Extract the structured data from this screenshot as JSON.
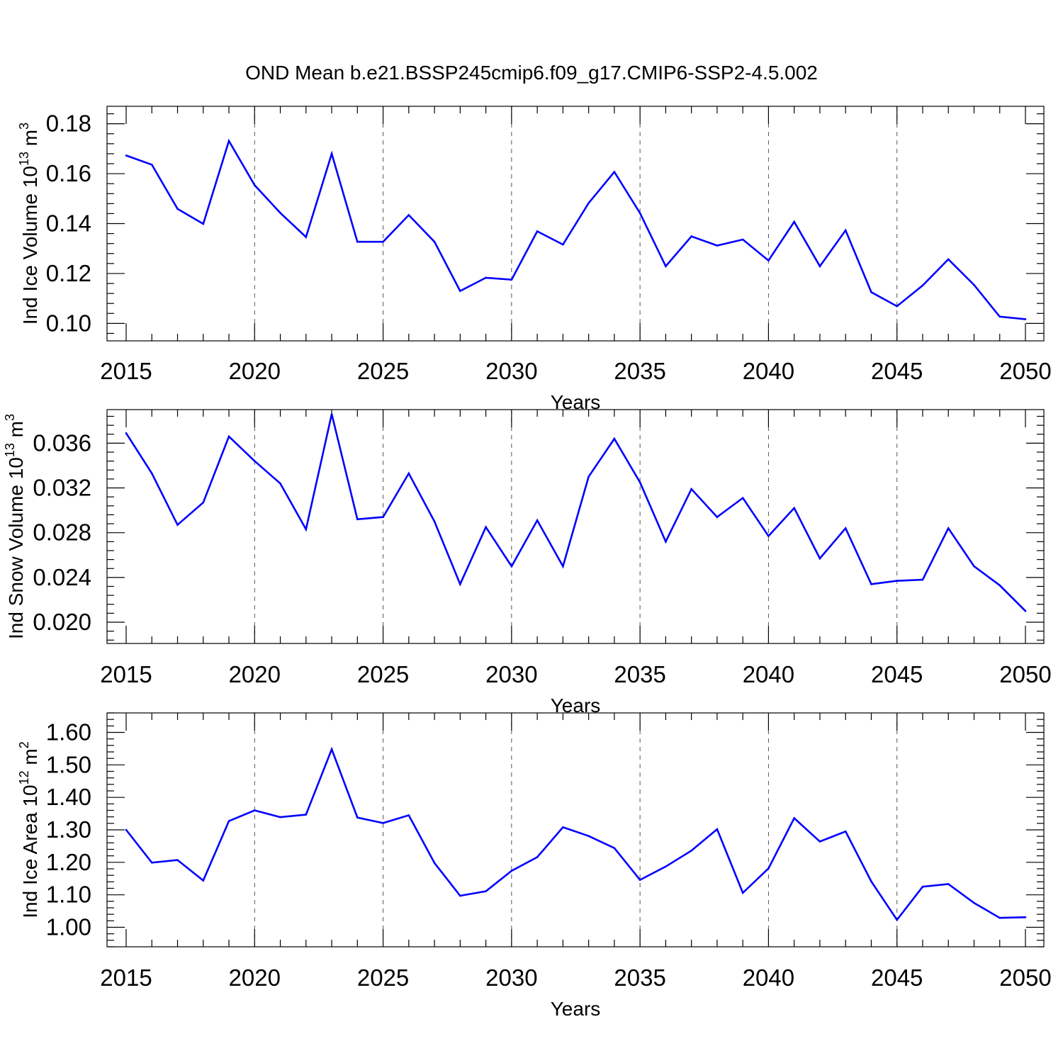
{
  "title": "OND Mean b.e21.BSSP245cmip6.f09_g17.CMIP6-SSP2-4.5.002",
  "colors": {
    "series": "#0000ff",
    "axis": "#000000",
    "grid": "#555555"
  },
  "chart_data": [
    {
      "type": "line",
      "ylabel_main": "Ind Ice Volume 10",
      "ylabel_exp": "13",
      "ylabel_unit": " m",
      "ylabel_unit_exp": "3",
      "xlabel": "Years",
      "xlim": [
        2015,
        2050
      ],
      "ylim": [
        0.093,
        0.187
      ],
      "xticks": [
        "2015",
        "2020",
        "2025",
        "2030",
        "2035",
        "2040",
        "2045",
        "2050"
      ],
      "yticks": [
        "0.10",
        "0.12",
        "0.14",
        "0.16",
        "0.18"
      ],
      "grid": "vertical dashed at major x ticks",
      "x": [
        2015,
        2016,
        2017,
        2018,
        2019,
        2020,
        2021,
        2022,
        2023,
        2024,
        2025,
        2026,
        2027,
        2028,
        2029,
        2030,
        2031,
        2032,
        2033,
        2034,
        2035,
        2036,
        2037,
        2038,
        2039,
        2040,
        2041,
        2042,
        2043,
        2044,
        2045,
        2046,
        2047,
        2048,
        2049,
        2050
      ],
      "values": [
        0.1673,
        0.1636,
        0.1459,
        0.1399,
        0.1731,
        0.1554,
        0.1443,
        0.1346,
        0.168,
        0.1327,
        0.1327,
        0.1434,
        0.1327,
        0.113,
        0.1183,
        0.1175,
        0.1369,
        0.1316,
        0.1482,
        0.1607,
        0.1442,
        0.1229,
        0.1349,
        0.1312,
        0.1336,
        0.1252,
        0.1407,
        0.1229,
        0.1373,
        0.1125,
        0.1069,
        0.1152,
        0.1257,
        0.1154,
        0.1027,
        0.1017
      ]
    },
    {
      "type": "line",
      "ylabel_main": "Ind Snow Volume 10",
      "ylabel_exp": "13",
      "ylabel_unit": " m",
      "ylabel_unit_exp": "3",
      "xlabel": "Years",
      "xlim": [
        2015,
        2050
      ],
      "ylim": [
        0.0181,
        0.039
      ],
      "xticks": [
        "2015",
        "2020",
        "2025",
        "2030",
        "2035",
        "2040",
        "2045",
        "2050"
      ],
      "yticks": [
        "0.020",
        "0.024",
        "0.028",
        "0.032",
        "0.036"
      ],
      "grid": "vertical dashed at major x ticks",
      "x": [
        2015,
        2016,
        2017,
        2018,
        2019,
        2020,
        2021,
        2022,
        2023,
        2024,
        2025,
        2026,
        2027,
        2028,
        2029,
        2030,
        2031,
        2032,
        2033,
        2034,
        2035,
        2036,
        2037,
        2038,
        2039,
        2040,
        2041,
        2042,
        2043,
        2044,
        2045,
        2046,
        2047,
        2048,
        2049,
        2050
      ],
      "values": [
        0.0369,
        0.0333,
        0.0287,
        0.0307,
        0.0366,
        0.0344,
        0.0324,
        0.0283,
        0.0386,
        0.0292,
        0.0294,
        0.0333,
        0.029,
        0.0234,
        0.0285,
        0.025,
        0.0291,
        0.025,
        0.033,
        0.0364,
        0.0325,
        0.0272,
        0.0319,
        0.0294,
        0.0311,
        0.0277,
        0.0302,
        0.0257,
        0.0284,
        0.0234,
        0.0237,
        0.0238,
        0.0284,
        0.025,
        0.0233,
        0.021
      ]
    },
    {
      "type": "line",
      "ylabel_main": "Ind Ice Area 10",
      "ylabel_exp": "12",
      "ylabel_unit": " m",
      "ylabel_unit_exp": "2",
      "xlabel": "Years",
      "xlim": [
        2015,
        2050
      ],
      "ylim": [
        0.94,
        1.66
      ],
      "xticks": [
        "2015",
        "2020",
        "2025",
        "2030",
        "2035",
        "2040",
        "2045",
        "2050"
      ],
      "yticks": [
        "1.00",
        "1.10",
        "1.20",
        "1.30",
        "1.40",
        "1.50",
        "1.60"
      ],
      "grid": "vertical dashed at major x ticks",
      "x": [
        2015,
        2016,
        2017,
        2018,
        2019,
        2020,
        2021,
        2022,
        2023,
        2024,
        2025,
        2026,
        2027,
        2028,
        2029,
        2030,
        2031,
        2032,
        2033,
        2034,
        2035,
        2036,
        2037,
        2038,
        2039,
        2040,
        2041,
        2042,
        2043,
        2044,
        2045,
        2046,
        2047,
        2048,
        2049,
        2050
      ],
      "values": [
        1.3,
        1.199,
        1.207,
        1.144,
        1.327,
        1.36,
        1.339,
        1.347,
        1.548,
        1.338,
        1.321,
        1.345,
        1.198,
        1.097,
        1.111,
        1.174,
        1.216,
        1.308,
        1.281,
        1.244,
        1.146,
        1.187,
        1.236,
        1.302,
        1.106,
        1.181,
        1.336,
        1.264,
        1.295,
        1.141,
        1.023,
        1.125,
        1.133,
        1.075,
        1.029,
        1.031
      ]
    }
  ]
}
